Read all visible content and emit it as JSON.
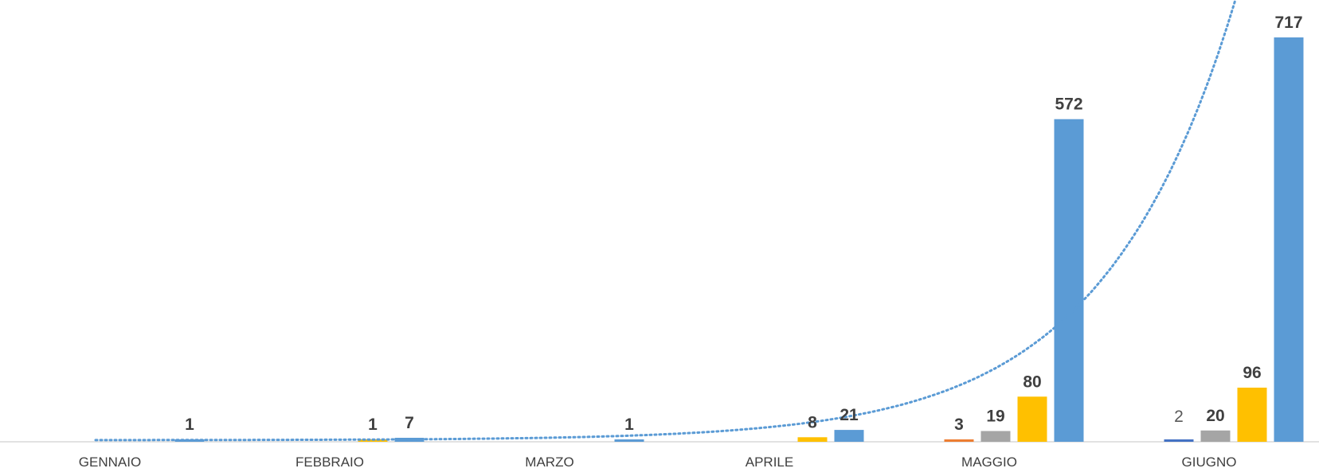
{
  "chart_data": {
    "type": "bar",
    "title": "",
    "xlabel": "",
    "ylabel": "",
    "ylim": [
      0,
      760
    ],
    "grid": false,
    "legend": "none",
    "categories": [
      "GENNAIO",
      "FEBBRAIO",
      "MARZO",
      "APRILE",
      "MAGGIO",
      "GIUGNO"
    ],
    "series": [
      {
        "color": "#ED7D31",
        "values": [
          null,
          null,
          null,
          null,
          3,
          null
        ],
        "labels": [
          null,
          null,
          null,
          null,
          "3",
          null
        ]
      },
      {
        "color": "#A5A5A5",
        "values": [
          null,
          null,
          null,
          null,
          19,
          20
        ],
        "labels": [
          null,
          null,
          null,
          null,
          "19",
          "20"
        ]
      },
      {
        "color": "#FFC000",
        "values": [
          null,
          1,
          null,
          8,
          80,
          96
        ],
        "labels": [
          null,
          "1",
          null,
          "8",
          "80",
          "96"
        ]
      },
      {
        "color": "#5B9BD5",
        "values": [
          1,
          7,
          1,
          21,
          572,
          717
        ],
        "labels": [
          "1",
          "7",
          "1",
          "21",
          "572",
          "717"
        ]
      }
    ],
    "extra_series": {
      "color": "#4472C4",
      "values": [
        null,
        null,
        null,
        null,
        null,
        2
      ],
      "labels": [
        null,
        null,
        null,
        null,
        null,
        "2"
      ]
    },
    "trendline": {
      "type": "exponential",
      "style": "dotted",
      "color": "#5B9BD5"
    }
  }
}
